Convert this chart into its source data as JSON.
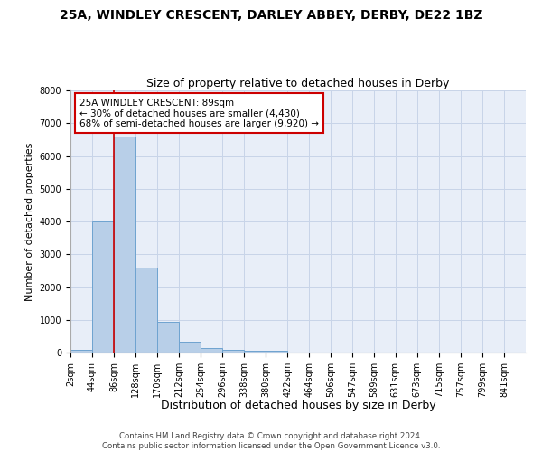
{
  "title": "25A, WINDLEY CRESCENT, DARLEY ABBEY, DERBY, DE22 1BZ",
  "subtitle": "Size of property relative to detached houses in Derby",
  "xlabel": "Distribution of detached houses by size in Derby",
  "ylabel": "Number of detached properties",
  "bin_labels": [
    "2sqm",
    "44sqm",
    "86sqm",
    "128sqm",
    "170sqm",
    "212sqm",
    "254sqm",
    "296sqm",
    "338sqm",
    "380sqm",
    "422sqm",
    "464sqm",
    "506sqm",
    "547sqm",
    "589sqm",
    "631sqm",
    "673sqm",
    "715sqm",
    "757sqm",
    "799sqm",
    "841sqm"
  ],
  "bar_heights": [
    80,
    4000,
    6600,
    2600,
    950,
    320,
    130,
    80,
    50,
    50,
    0,
    0,
    0,
    0,
    0,
    0,
    0,
    0,
    0,
    0
  ],
  "bar_color": "#b8cfe8",
  "bar_edge_color": "#6ea3d0",
  "property_line_x": 86,
  "property_line_color": "#cc0000",
  "annotation_text": "25A WINDLEY CRESCENT: 89sqm\n← 30% of detached houses are smaller (4,430)\n68% of semi-detached houses are larger (9,920) →",
  "annotation_box_color": "#cc0000",
  "ylim": [
    0,
    8000
  ],
  "yticks": [
    0,
    1000,
    2000,
    3000,
    4000,
    5000,
    6000,
    7000,
    8000
  ],
  "grid_color": "#c8d4e8",
  "background_color": "#e8eef8",
  "footer_text": "Contains HM Land Registry data © Crown copyright and database right 2024.\nContains public sector information licensed under the Open Government Licence v3.0.",
  "title_fontsize": 10,
  "subtitle_fontsize": 9,
  "xlabel_fontsize": 9,
  "ylabel_fontsize": 8,
  "tick_fontsize": 7,
  "annotation_fontsize": 7.5
}
